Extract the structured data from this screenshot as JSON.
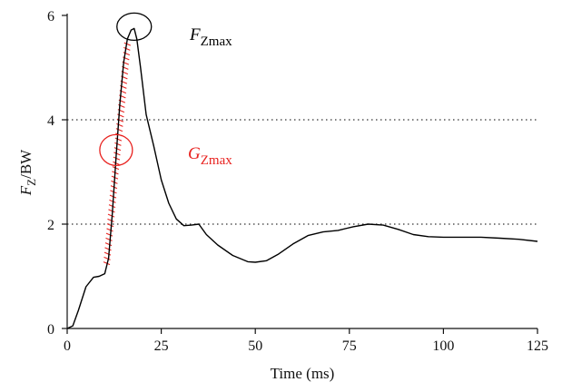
{
  "chart_data": {
    "type": "line",
    "title": "",
    "xlabel": "Time (ms)",
    "ylabel": {
      "main": "F",
      "sub": "Z",
      "tail": "/BW"
    },
    "xlim": [
      0,
      125
    ],
    "ylim": [
      0,
      6
    ],
    "x_ticks": [
      "0",
      "25",
      "50",
      "75",
      "100",
      "125"
    ],
    "y_ticks": [
      "0",
      "2",
      "4",
      "6"
    ],
    "x_tick_values": [
      0,
      25,
      50,
      75,
      100,
      125
    ],
    "y_tick_values": [
      0,
      2,
      4,
      6
    ],
    "grid": "dotted horizontal lines at y = 2 and y = 4",
    "reference_lines_y": [
      2,
      4
    ],
    "series": [
      {
        "x": [
          0,
          1.5,
          3,
          5,
          7,
          8.5,
          10,
          11,
          12,
          13,
          14,
          15,
          16,
          17,
          17.8,
          18.5,
          19.5,
          21,
          23,
          25,
          27,
          29,
          31,
          33,
          35,
          37,
          40,
          44,
          48,
          50,
          53,
          56,
          60,
          64,
          68,
          72,
          76,
          80,
          84,
          88,
          92,
          96,
          100,
          105,
          110,
          115,
          120,
          125
        ],
        "y": [
          0,
          0.05,
          0.35,
          0.8,
          0.98,
          1.0,
          1.05,
          1.35,
          2.2,
          3.3,
          4.3,
          5.1,
          5.55,
          5.72,
          5.75,
          5.55,
          5.0,
          4.1,
          3.5,
          2.85,
          2.4,
          2.1,
          1.97,
          1.98,
          2.0,
          1.8,
          1.6,
          1.4,
          1.28,
          1.27,
          1.3,
          1.42,
          1.62,
          1.78,
          1.85,
          1.88,
          1.95,
          2.0,
          1.98,
          1.9,
          1.8,
          1.76,
          1.75,
          1.75,
          1.75,
          1.73,
          1.71,
          1.67
        ],
        "color": "#000000"
      }
    ],
    "annotations": [
      {
        "id": "fzmax",
        "main": "F",
        "sub": "Zmax",
        "color": "#000000",
        "circle_at": [
          17.8,
          5.75
        ]
      },
      {
        "id": "gzmax",
        "main": "G",
        "sub": "Zmax",
        "color": "#e8221f",
        "circle_at": [
          13,
          3.42
        ]
      }
    ],
    "slope_hatch": {
      "from": [
        10.5,
        1.25
      ],
      "to": [
        16,
        5.45
      ],
      "color": "#e8221f"
    }
  }
}
